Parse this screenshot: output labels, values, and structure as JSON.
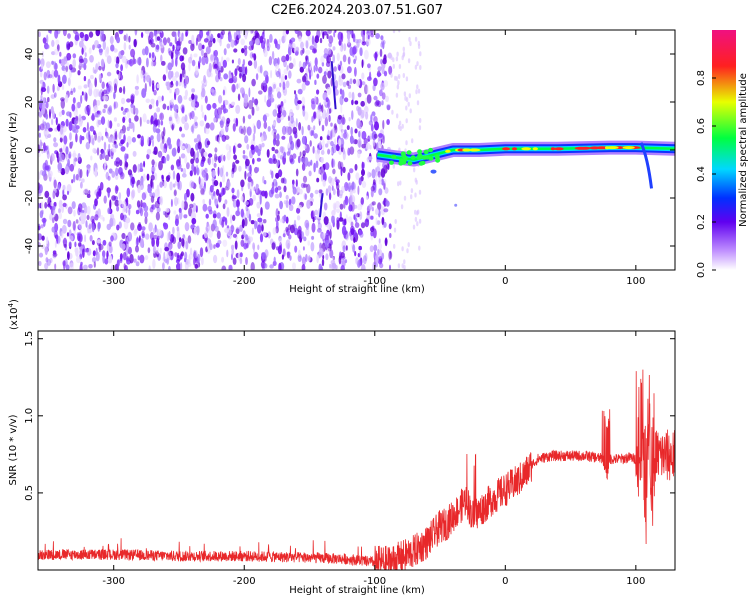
{
  "title": "C2E6.2024.203.07.51.G07",
  "colors": {
    "snr_line": "#e8282a",
    "spectrogram_noise": "#7a10f0",
    "colormap": [
      "#ffffff",
      "#b070ff",
      "#5a00e8",
      "#0020ff",
      "#00d8ff",
      "#00ff40",
      "#e8ff00",
      "#ff2020",
      "#f01080"
    ]
  },
  "chart_data": [
    {
      "type": "heatmap",
      "xlabel": "Height of straight line (km)",
      "ylabel": "Frequency (Hz)",
      "xlim": [
        -358,
        130
      ],
      "ylim": [
        -50,
        50
      ],
      "xticks": [
        -300,
        -200,
        -100,
        0,
        100
      ],
      "xtick_labels": [
        "-300",
        "-200",
        "-100",
        "0",
        "100"
      ],
      "yticks": [
        -40,
        -20,
        0,
        20,
        40
      ],
      "ytick_labels": [
        "-40",
        "-20",
        "0",
        "20",
        "40"
      ],
      "noise_region_x": [
        -358,
        -88
      ],
      "signal_track": [
        {
          "x": -98,
          "f": -2
        },
        {
          "x": -85,
          "f": -3
        },
        {
          "x": -70,
          "f": -4
        },
        {
          "x": -55,
          "f": -2
        },
        {
          "x": -40,
          "f": 0
        },
        {
          "x": -20,
          "f": 0
        },
        {
          "x": 0,
          "f": 0.5
        },
        {
          "x": 40,
          "f": 0.5
        },
        {
          "x": 80,
          "f": 1
        },
        {
          "x": 100,
          "f": 1
        },
        {
          "x": 130,
          "f": 0.5
        }
      ],
      "peak_region_x": [
        -50,
        100
      ],
      "colorbar": {
        "label": "Normalized spectral amplitude",
        "range": [
          0,
          1
        ],
        "ticks": [
          0.0,
          0.2,
          0.4,
          0.6,
          0.8
        ],
        "tick_labels": [
          "0.0",
          "0.2",
          "0.4",
          "0.6",
          "0.8"
        ]
      }
    },
    {
      "type": "line",
      "xlabel": "Height of straight line (km)",
      "ylabel": "SNR (10 * v/v)",
      "scale_label": "(x10",
      "scale_exponent": "4",
      "scale_suffix": ")",
      "xlim": [
        -358,
        130
      ],
      "ylim": [
        0,
        1.55
      ],
      "xticks": [
        -300,
        -200,
        -100,
        0,
        100
      ],
      "xtick_labels": [
        "-300",
        "-200",
        "-100",
        "0",
        "100"
      ],
      "yticks": [
        0.5,
        1.0,
        1.5
      ],
      "ytick_labels": [
        "0.5",
        "1.0",
        "1.5"
      ],
      "series": [
        {
          "x": [
            -358,
            -300,
            -250,
            -200,
            -150,
            -120,
            -100,
            -90,
            -80,
            -70,
            -60,
            -50,
            -45,
            -40,
            -35,
            -30,
            -25,
            -20,
            -15,
            -10,
            -5,
            0,
            5,
            10,
            15,
            20,
            25,
            30,
            35,
            40,
            50,
            60,
            70,
            75,
            78,
            80,
            85,
            90,
            95,
            100,
            103,
            105,
            108,
            110,
            113,
            115,
            120,
            130
          ],
          "y": [
            0.1,
            0.1,
            0.09,
            0.09,
            0.08,
            0.07,
            0.05,
            0.05,
            0.08,
            0.12,
            0.18,
            0.28,
            0.3,
            0.35,
            0.4,
            0.46,
            0.35,
            0.38,
            0.42,
            0.46,
            0.49,
            0.52,
            0.55,
            0.58,
            0.62,
            0.68,
            0.72,
            0.73,
            0.74,
            0.74,
            0.74,
            0.74,
            0.73,
            0.72,
            0.6,
            0.72,
            0.72,
            0.72,
            0.73,
            0.72,
            0.6,
            0.75,
            0.3,
            0.9,
            0.35,
            0.75,
            0.74,
            0.74
          ]
        }
      ]
    }
  ]
}
